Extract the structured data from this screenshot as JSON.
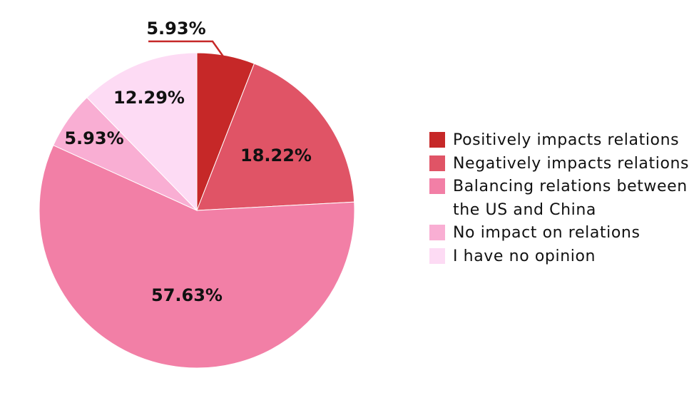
{
  "chart_data": {
    "type": "pie",
    "start_angle": "top (12 o'clock), clockwise",
    "slices": [
      {
        "label": "Positively impacts relations",
        "value": 5.93,
        "display": "5.93%",
        "color": "#c62828"
      },
      {
        "label": "Negatively impacts relations",
        "value": 18.22,
        "display": "18.22%",
        "color": "#e05466"
      },
      {
        "label": "Balancing relations between the US and China",
        "value": 57.63,
        "display": "57.63%",
        "color": "#f27fa6"
      },
      {
        "label": "No impact on relations",
        "value": 5.93,
        "display": "5.93%",
        "color": "#f9aed3"
      },
      {
        "label": "I have no opinion",
        "value": 12.29,
        "display": "12.29%",
        "color": "#fddbf4"
      }
    ],
    "legend_position": "right",
    "title": ""
  }
}
